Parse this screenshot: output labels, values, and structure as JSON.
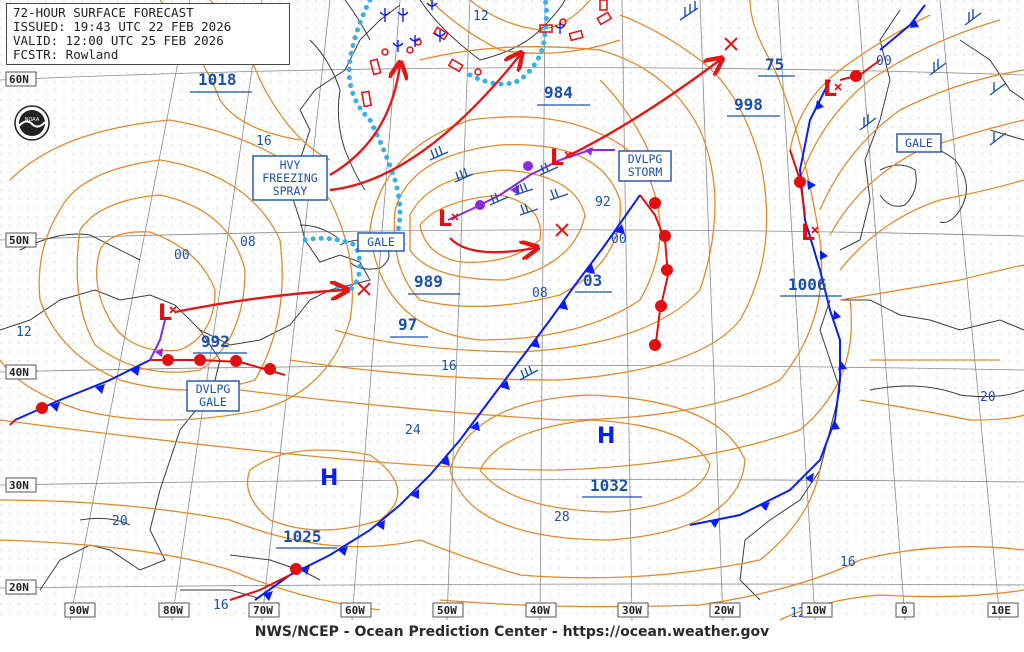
{
  "header": {
    "title": "72-HOUR SURFACE FORECAST",
    "issued": "ISSUED: 19:43 UTC 22 FEB 2026",
    "valid": "VALID: 12:00 UTC 25 FEB 2026",
    "forecaster": "FCSTR: Rowland"
  },
  "footer": "NWS/NCEP - Ocean Prediction Center - https://ocean.weather.gov",
  "lat_labels": [
    "60N",
    "50N",
    "40N",
    "30N",
    "20N"
  ],
  "lon_labels": [
    "90W",
    "80W",
    "70W",
    "60W",
    "50W",
    "40W",
    "30W",
    "20W",
    "10W",
    "0",
    "10E"
  ],
  "pressure_labels": [
    "1018",
    "984",
    "998",
    "75",
    "989",
    "992",
    "97",
    "03",
    "1006",
    "1025",
    "1032"
  ],
  "isobar_labels": [
    "12",
    "16",
    "08",
    "00",
    "92",
    "00",
    "08",
    "16",
    "24",
    "28",
    "20",
    "16",
    "12",
    "12",
    "20",
    "00",
    "16"
  ],
  "boxed_labels": {
    "hvy_freezing_spray": [
      "HVY",
      "FREEZING",
      "SPRAY"
    ],
    "gale_1": "GALE",
    "gale_2": "GALE",
    "dvlpg_storm": [
      "DVLPG",
      "STORM"
    ],
    "dvlpg_gale": [
      "DVLPG",
      "GALE"
    ]
  },
  "high_symbol": "H",
  "low_symbol": "L",
  "colors": {
    "isobar": "#e08a2e",
    "cold_front": "#0a1ef0",
    "warm_front": "#e01010",
    "occluded_front": "#8a2be2",
    "track_arrow": "#e01818",
    "ice_edge": "#3ab0ea",
    "text_blue": "#1c50a8",
    "grid": "#7d7d7d",
    "coast": "#333333"
  }
}
